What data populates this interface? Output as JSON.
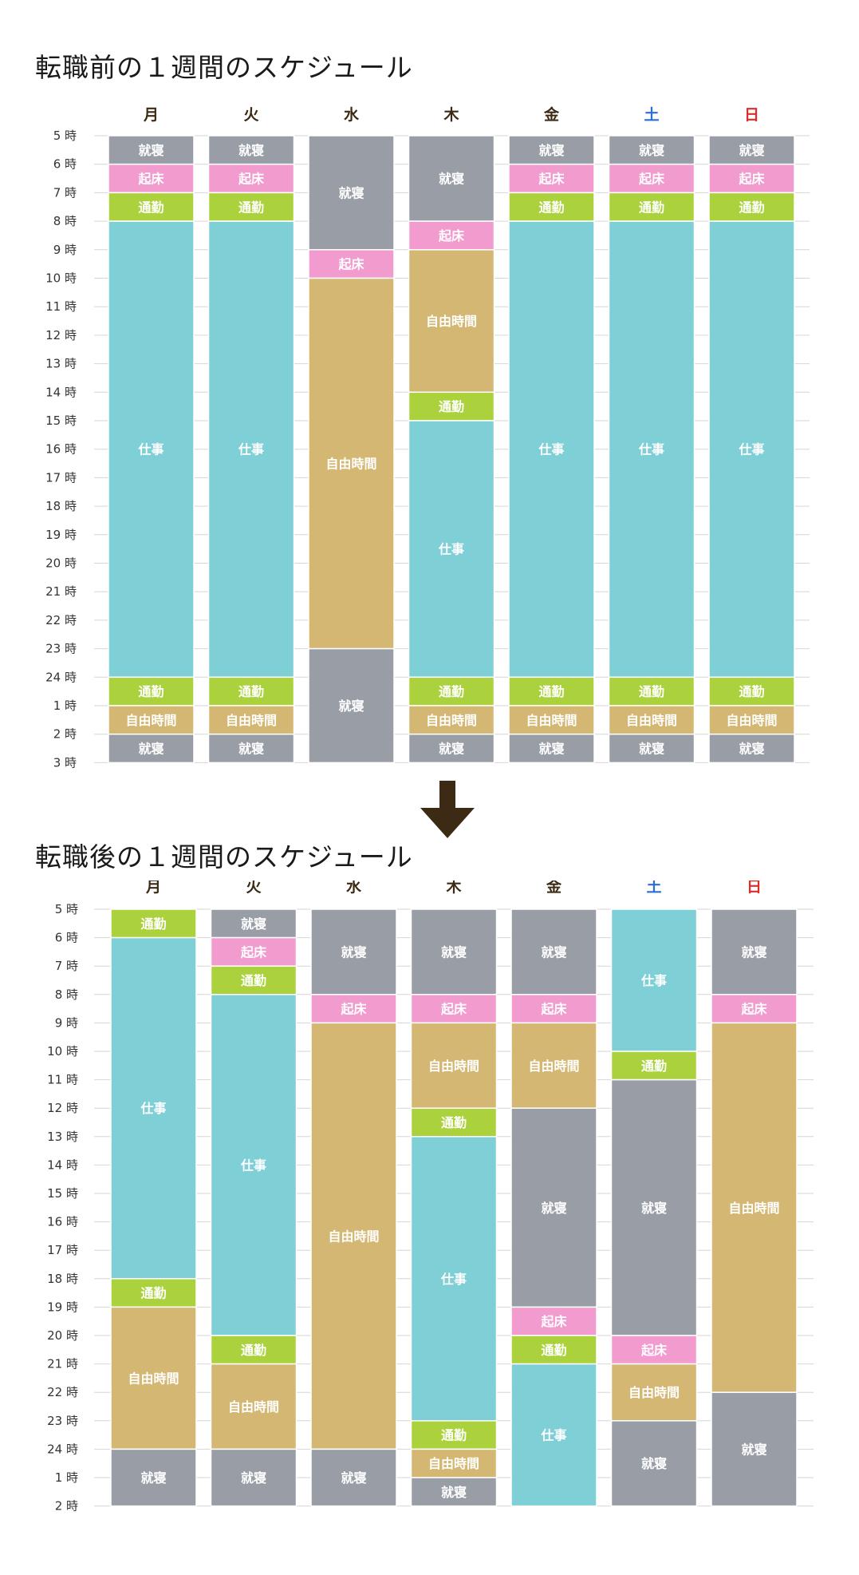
{
  "chart_data": [
    {
      "type": "table",
      "title": "転職前の１週間のスケジュール",
      "days": [
        {
          "label": "月",
          "color": "#3d2a14"
        },
        {
          "label": "火",
          "color": "#3d2a14"
        },
        {
          "label": "水",
          "color": "#3d2a14"
        },
        {
          "label": "木",
          "color": "#3d2a14"
        },
        {
          "label": "金",
          "color": "#3d2a14"
        },
        {
          "label": "土",
          "color": "#2a6fd6"
        },
        {
          "label": "日",
          "color": "#e02b2b"
        }
      ],
      "hour_labels": [
        "5 時",
        "6 時",
        "7 時",
        "8 時",
        "9 時",
        "10 時",
        "11 時",
        "12 時",
        "13 時",
        "14 時",
        "15 時",
        "16 時",
        "17 時",
        "18 時",
        "19 時",
        "20 時",
        "21 時",
        "22 時",
        "23 時",
        "24 時",
        "1 時",
        "2 時",
        "3 時"
      ],
      "schedule": [
        [
          [
            "就寝",
            1
          ],
          [
            "起床",
            1
          ],
          [
            "通勤",
            1
          ],
          [
            "仕事",
            16
          ],
          [
            "通勤",
            1
          ],
          [
            "自由時間",
            1
          ],
          [
            "就寝",
            1
          ]
        ],
        [
          [
            "就寝",
            1
          ],
          [
            "起床",
            1
          ],
          [
            "通勤",
            1
          ],
          [
            "仕事",
            16
          ],
          [
            "通勤",
            1
          ],
          [
            "自由時間",
            1
          ],
          [
            "就寝",
            1
          ]
        ],
        [
          [
            "就寝",
            4
          ],
          [
            "起床",
            1
          ],
          [
            "自由時間",
            13
          ],
          [
            "就寝",
            4
          ]
        ],
        [
          [
            "就寝",
            3
          ],
          [
            "起床",
            1
          ],
          [
            "自由時間",
            5
          ],
          [
            "通勤",
            1
          ],
          [
            "仕事",
            9
          ],
          [
            "通勤",
            1
          ],
          [
            "自由時間",
            1
          ],
          [
            "就寝",
            1
          ]
        ],
        [
          [
            "就寝",
            1
          ],
          [
            "起床",
            1
          ],
          [
            "通勤",
            1
          ],
          [
            "仕事",
            16
          ],
          [
            "通勤",
            1
          ],
          [
            "自由時間",
            1
          ],
          [
            "就寝",
            1
          ]
        ],
        [
          [
            "就寝",
            1
          ],
          [
            "起床",
            1
          ],
          [
            "通勤",
            1
          ],
          [
            "仕事",
            16
          ],
          [
            "通勤",
            1
          ],
          [
            "自由時間",
            1
          ],
          [
            "就寝",
            1
          ]
        ],
        [
          [
            "就寝",
            1
          ],
          [
            "起床",
            1
          ],
          [
            "通勤",
            1
          ],
          [
            "仕事",
            16
          ],
          [
            "通勤",
            1
          ],
          [
            "自由時間",
            1
          ],
          [
            "就寝",
            1
          ]
        ]
      ]
    },
    {
      "type": "table",
      "title": "転職後の１週間のスケジュール",
      "days": [
        {
          "label": "月",
          "color": "#3d2a14"
        },
        {
          "label": "火",
          "color": "#3d2a14"
        },
        {
          "label": "水",
          "color": "#3d2a14"
        },
        {
          "label": "木",
          "color": "#3d2a14"
        },
        {
          "label": "金",
          "color": "#3d2a14"
        },
        {
          "label": "土",
          "color": "#2a6fd6"
        },
        {
          "label": "日",
          "color": "#e02b2b"
        }
      ],
      "hour_labels": [
        "5 時",
        "6 時",
        "7 時",
        "8 時",
        "9 時",
        "10 時",
        "11 時",
        "12 時",
        "13 時",
        "14 時",
        "15 時",
        "16 時",
        "17 時",
        "18 時",
        "19 時",
        "20 時",
        "21 時",
        "22 時",
        "23 時",
        "24 時",
        "1 時",
        "2 時"
      ],
      "schedule": [
        [
          [
            "通勤",
            1
          ],
          [
            "仕事",
            12
          ],
          [
            "通勤",
            1
          ],
          [
            "自由時間",
            5
          ],
          [
            "就寝",
            2
          ]
        ],
        [
          [
            "就寝",
            1
          ],
          [
            "起床",
            1
          ],
          [
            "通勤",
            1
          ],
          [
            "仕事",
            12
          ],
          [
            "通勤",
            1
          ],
          [
            "自由時間",
            3
          ],
          [
            "就寝",
            2
          ]
        ],
        [
          [
            "就寝",
            3
          ],
          [
            "起床",
            1
          ],
          [
            "自由時間",
            15
          ],
          [
            "就寝",
            2
          ]
        ],
        [
          [
            "就寝",
            3
          ],
          [
            "起床",
            1
          ],
          [
            "自由時間",
            3
          ],
          [
            "通勤",
            1
          ],
          [
            "仕事",
            10
          ],
          [
            "通勤",
            1
          ],
          [
            "自由時間",
            1
          ],
          [
            "就寝",
            1
          ]
        ],
        [
          [
            "就寝",
            3
          ],
          [
            "起床",
            1
          ],
          [
            "自由時間",
            3
          ],
          [
            "就寝",
            7
          ],
          [
            "起床",
            1
          ],
          [
            "通勤",
            1
          ],
          [
            "仕事",
            5
          ]
        ],
        [
          [
            "仕事",
            5
          ],
          [
            "通勤",
            1
          ],
          [
            "就寝",
            9
          ],
          [
            "起床",
            1
          ],
          [
            "自由時間",
            2
          ],
          [
            "就寝",
            3
          ]
        ],
        [
          [
            "就寝",
            3
          ],
          [
            "起床",
            1
          ],
          [
            "自由時間",
            13
          ],
          [
            "就寝",
            4
          ]
        ]
      ]
    }
  ],
  "legend_colors": {
    "就寝": "#999ea6",
    "起床": "#f29bcf",
    "通勤": "#abd23d",
    "仕事": "#7fcfd6",
    "自由時間": "#d4b772"
  },
  "arrow_icon": "down-arrow-icon",
  "arrow_color": "#3d2a14"
}
